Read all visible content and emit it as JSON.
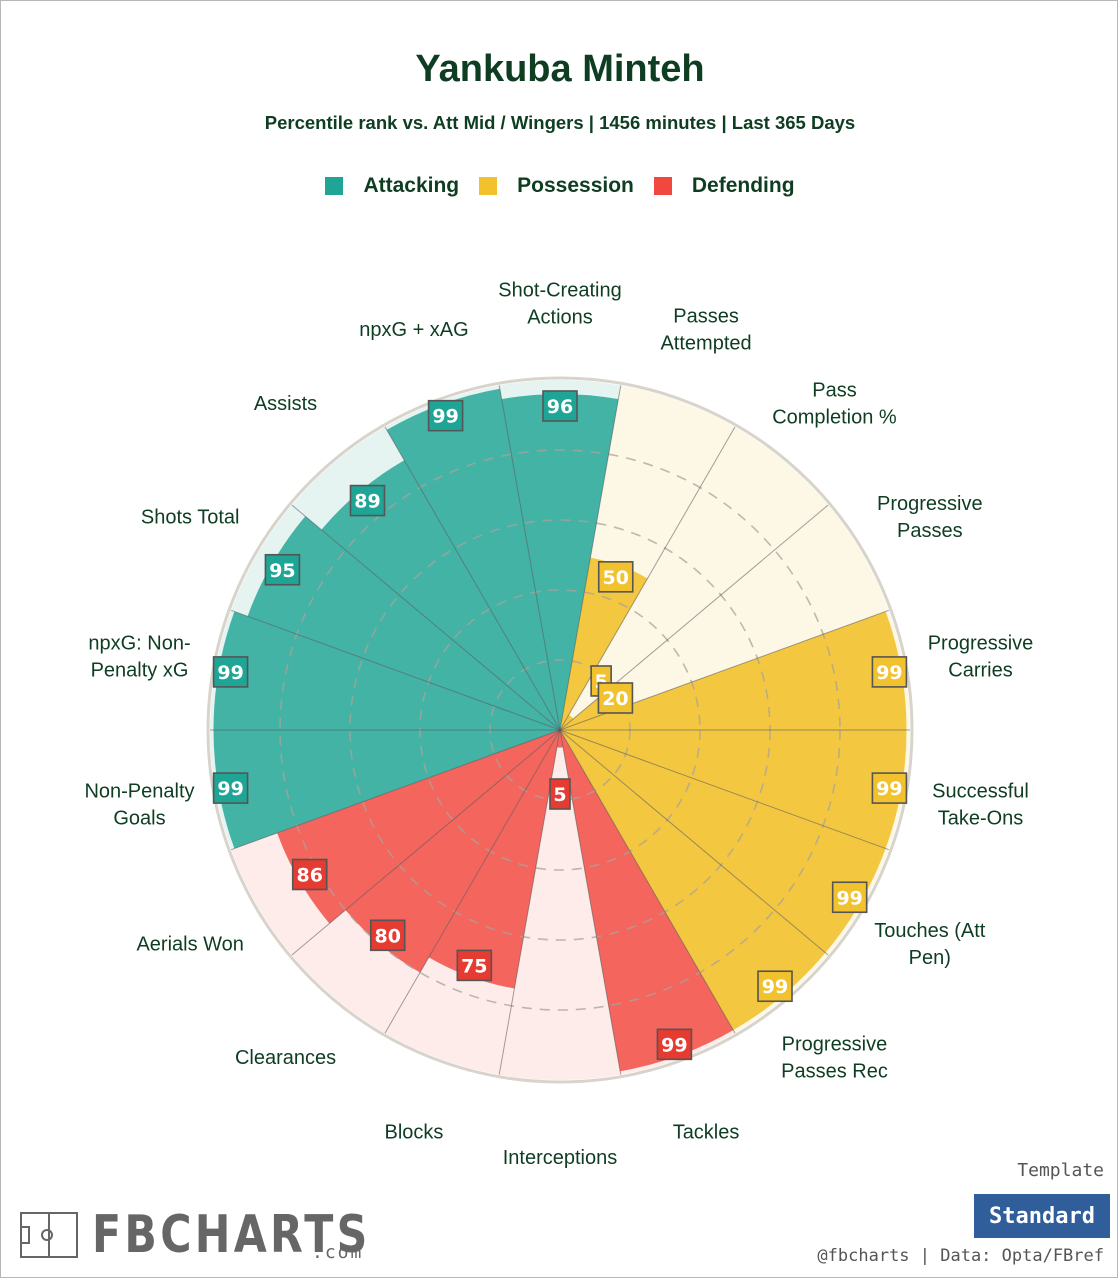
{
  "chart_data": {
    "type": "polar-bar",
    "title": "Yankuba Minteh",
    "subtitle": "Percentile rank vs. Att Mid / Wingers | 1456 minutes | Last 365 Days",
    "legend": [
      {
        "name": "Attacking",
        "color": "#1fa595"
      },
      {
        "name": "Possession",
        "color": "#f2c12e"
      },
      {
        "name": "Defending",
        "color": "#f2473f"
      }
    ],
    "r_range": [
      0,
      100
    ],
    "categories": [
      {
        "label": [
          "Shot-Creating",
          "Actions"
        ],
        "value": 96,
        "group": "Attacking"
      },
      {
        "label": [
          "Passes",
          "Attempted"
        ],
        "value": 50,
        "group": "Possession"
      },
      {
        "label": [
          "Pass",
          "Completion %"
        ],
        "value": 5,
        "group": "Possession"
      },
      {
        "label": [
          "Progressive",
          "Passes"
        ],
        "value": 20,
        "group": "Possession"
      },
      {
        "label": [
          "Progressive",
          "Carries"
        ],
        "value": 99,
        "group": "Possession"
      },
      {
        "label": [
          "Successful",
          "Take-Ons"
        ],
        "value": 99,
        "group": "Possession"
      },
      {
        "label": [
          "Touches (Att",
          "Pen)"
        ],
        "value": 99,
        "group": "Possession"
      },
      {
        "label": [
          "Progressive",
          "Passes Rec"
        ],
        "value": 99,
        "group": "Possession"
      },
      {
        "label": [
          "Tackles"
        ],
        "value": 99,
        "group": "Defending"
      },
      {
        "label": [
          "Interceptions"
        ],
        "value": 5,
        "group": "Defending"
      },
      {
        "label": [
          "Blocks"
        ],
        "value": 75,
        "group": "Defending"
      },
      {
        "label": [
          "Clearances"
        ],
        "value": 80,
        "group": "Defending"
      },
      {
        "label": [
          "Aerials Won"
        ],
        "value": 86,
        "group": "Defending"
      },
      {
        "label": [
          "Non-Penalty",
          "Goals"
        ],
        "value": 99,
        "group": "Attacking"
      },
      {
        "label": [
          "npxG: Non-",
          "Penalty xG"
        ],
        "value": 99,
        "group": "Attacking"
      },
      {
        "label": [
          "Shots Total"
        ],
        "value": 95,
        "group": "Attacking"
      },
      {
        "label": [
          "Assists"
        ],
        "value": 89,
        "group": "Attacking"
      },
      {
        "label": [
          "npxG + xAG"
        ],
        "value": 99,
        "group": "Attacking"
      }
    ]
  },
  "colors": {
    "Attacking": {
      "bar": "#1fa595",
      "light": "#e6f4f1",
      "badge": "#1fa595"
    },
    "Possession": {
      "bar": "#f2c12e",
      "light": "#fdf7e6",
      "badge": "#f2c12e"
    },
    "Defending": {
      "bar": "#f2473f",
      "light": "#fdecea",
      "badge": "#e63b30"
    },
    "title": "#0e3d22",
    "button": "#2f5e9a"
  },
  "template": {
    "label": "Template",
    "button": "Standard"
  },
  "credit": "@fbcharts | Data: Opta/FBref",
  "brand": {
    "name": "FBCHARTS",
    "suffix": ".com",
    "icon": "pitch-icon"
  }
}
